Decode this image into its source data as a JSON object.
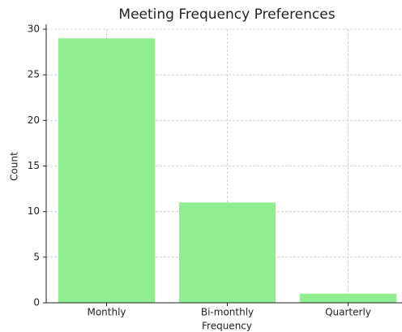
{
  "chart_data": {
    "type": "bar",
    "title": "Meeting Frequency Preferences",
    "x_label": "Frequency",
    "y_label": "Count",
    "categories": [
      "Monthly",
      "Bi-monthly",
      "Quarterly"
    ],
    "values": [
      29,
      11,
      1
    ],
    "color": "#90ee90",
    "ylim": [
      0,
      30
    ],
    "yticks": [
      0,
      5,
      10,
      15,
      20,
      25,
      30
    ],
    "grid": true
  }
}
